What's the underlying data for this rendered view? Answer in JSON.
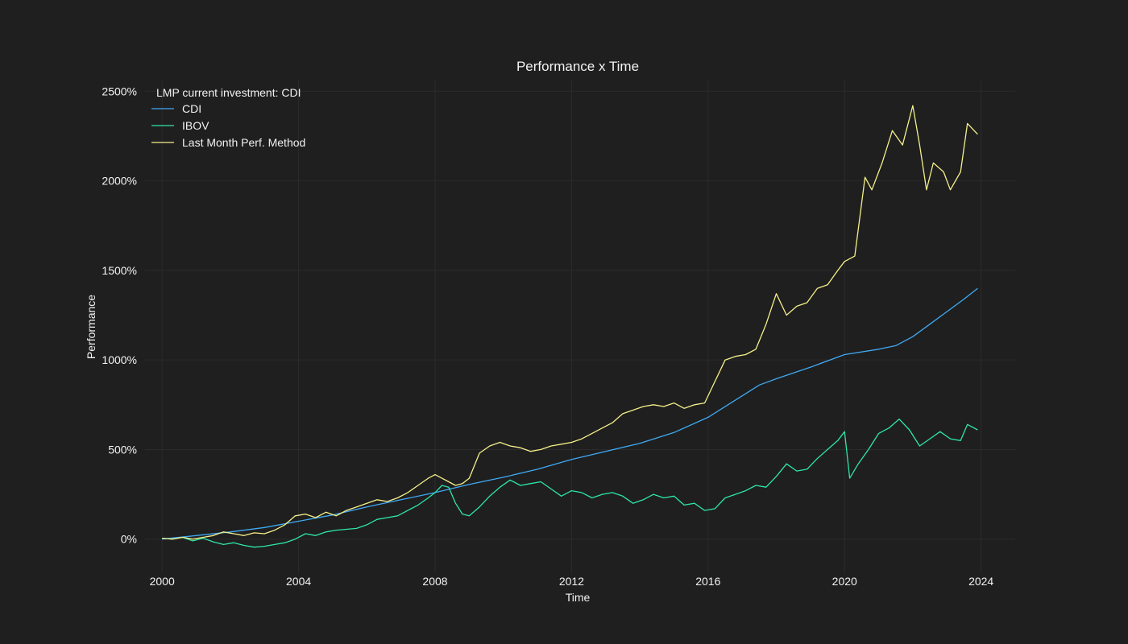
{
  "chart_data": {
    "type": "line",
    "title": "Performance x Time",
    "xlabel": "Time",
    "ylabel": "Performance",
    "legend_title": "LMP current investment: CDI",
    "legend_position": "top-left",
    "grid": true,
    "xlim": [
      1999.5,
      2025.0
    ],
    "ylim": [
      -190,
      2560
    ],
    "x_ticks": [
      2000,
      2004,
      2008,
      2012,
      2016,
      2020,
      2024
    ],
    "x_tick_labels": [
      "2000",
      "2004",
      "2008",
      "2012",
      "2016",
      "2020",
      "2024"
    ],
    "y_ticks": [
      0,
      500,
      1000,
      1500,
      2000,
      2500
    ],
    "y_tick_labels": [
      "0%",
      "500%",
      "1000%",
      "1500%",
      "2000%",
      "2500%"
    ],
    "series": [
      {
        "name": "CDI",
        "color": "#3fa9f5",
        "x": [
          2000.0,
          2001.0,
          2002.0,
          2003.0,
          2004.0,
          2005.0,
          2006.0,
          2007.0,
          2008.0,
          2009.0,
          2010.0,
          2011.0,
          2012.0,
          2013.0,
          2014.0,
          2015.0,
          2016.0,
          2017.0,
          2017.5,
          2018.0,
          2019.0,
          2020.0,
          2021.0,
          2021.5,
          2022.0,
          2022.5,
          2023.0,
          2023.5,
          2023.9
        ],
        "y": [
          0,
          20,
          40,
          65,
          100,
          135,
          180,
          220,
          260,
          305,
          345,
          390,
          445,
          490,
          535,
          595,
          680,
          800,
          860,
          895,
          960,
          1030,
          1060,
          1080,
          1130,
          1200,
          1270,
          1340,
          1400
        ]
      },
      {
        "name": "IBOV",
        "color": "#2ee6a8",
        "x": [
          2000.0,
          2000.3,
          2000.6,
          2000.9,
          2001.2,
          2001.5,
          2001.8,
          2002.1,
          2002.4,
          2002.7,
          2003.0,
          2003.3,
          2003.6,
          2003.9,
          2004.2,
          2004.5,
          2004.8,
          2005.1,
          2005.4,
          2005.7,
          2006.0,
          2006.3,
          2006.6,
          2006.9,
          2007.2,
          2007.5,
          2007.8,
          2008.0,
          2008.2,
          2008.4,
          2008.6,
          2008.8,
          2009.0,
          2009.3,
          2009.6,
          2009.9,
          2010.2,
          2010.5,
          2010.8,
          2011.1,
          2011.4,
          2011.7,
          2012.0,
          2012.3,
          2012.6,
          2012.9,
          2013.2,
          2013.5,
          2013.8,
          2014.1,
          2014.4,
          2014.7,
          2015.0,
          2015.3,
          2015.6,
          2015.9,
          2016.2,
          2016.5,
          2016.8,
          2017.1,
          2017.4,
          2017.7,
          2018.0,
          2018.3,
          2018.6,
          2018.9,
          2019.2,
          2019.5,
          2019.8,
          2020.0,
          2020.15,
          2020.4,
          2020.7,
          2021.0,
          2021.3,
          2021.6,
          2021.9,
          2022.2,
          2022.5,
          2022.8,
          2023.1,
          2023.4,
          2023.6,
          2023.9
        ],
        "y": [
          5,
          0,
          10,
          -10,
          5,
          -15,
          -30,
          -20,
          -35,
          -45,
          -40,
          -30,
          -20,
          0,
          30,
          20,
          40,
          50,
          55,
          60,
          80,
          110,
          120,
          130,
          160,
          190,
          230,
          260,
          300,
          290,
          200,
          140,
          130,
          180,
          240,
          290,
          330,
          300,
          310,
          320,
          280,
          240,
          270,
          260,
          230,
          250,
          260,
          240,
          200,
          220,
          250,
          230,
          240,
          190,
          200,
          160,
          170,
          230,
          250,
          270,
          300,
          290,
          350,
          420,
          380,
          390,
          450,
          500,
          550,
          600,
          340,
          420,
          500,
          590,
          620,
          670,
          610,
          520,
          560,
          600,
          560,
          550,
          640,
          610
        ]
      },
      {
        "name": "Last Month Perf. Method",
        "color": "#f5f08a",
        "x": [
          2000.0,
          2000.3,
          2000.6,
          2000.9,
          2001.2,
          2001.5,
          2001.8,
          2002.1,
          2002.4,
          2002.7,
          2003.0,
          2003.3,
          2003.6,
          2003.9,
          2004.2,
          2004.5,
          2004.8,
          2005.1,
          2005.4,
          2005.7,
          2006.0,
          2006.3,
          2006.6,
          2006.9,
          2007.2,
          2007.5,
          2007.8,
          2008.0,
          2008.2,
          2008.4,
          2008.6,
          2008.8,
          2009.0,
          2009.3,
          2009.6,
          2009.9,
          2010.2,
          2010.5,
          2010.8,
          2011.1,
          2011.4,
          2011.7,
          2012.0,
          2012.3,
          2012.6,
          2012.9,
          2013.2,
          2013.5,
          2013.8,
          2014.1,
          2014.4,
          2014.7,
          2015.0,
          2015.3,
          2015.6,
          2015.9,
          2016.2,
          2016.5,
          2016.8,
          2017.1,
          2017.4,
          2017.7,
          2018.0,
          2018.3,
          2018.6,
          2018.9,
          2019.2,
          2019.5,
          2019.8,
          2020.0,
          2020.3,
          2020.6,
          2020.8,
          2021.1,
          2021.4,
          2021.7,
          2022.0,
          2022.2,
          2022.4,
          2022.6,
          2022.9,
          2023.1,
          2023.4,
          2023.6,
          2023.9
        ],
        "y": [
          5,
          0,
          10,
          0,
          10,
          20,
          40,
          30,
          20,
          35,
          30,
          50,
          80,
          130,
          140,
          120,
          150,
          130,
          160,
          180,
          200,
          220,
          210,
          230,
          260,
          300,
          340,
          360,
          340,
          320,
          300,
          310,
          340,
          480,
          520,
          540,
          520,
          510,
          490,
          500,
          520,
          530,
          540,
          560,
          590,
          620,
          650,
          700,
          720,
          740,
          750,
          740,
          760,
          730,
          750,
          760,
          880,
          1000,
          1020,
          1030,
          1060,
          1200,
          1370,
          1250,
          1300,
          1320,
          1400,
          1420,
          1500,
          1550,
          1580,
          2020,
          1950,
          2100,
          2280,
          2200,
          2420,
          2200,
          1950,
          2100,
          2050,
          1950,
          2050,
          2320,
          2260
        ]
      }
    ]
  }
}
